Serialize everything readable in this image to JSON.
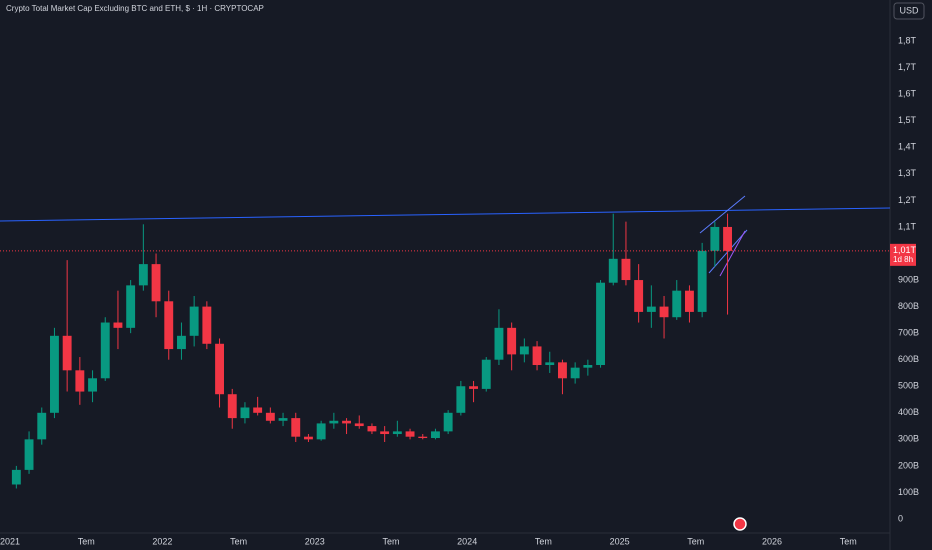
{
  "chart_data": {
    "type": "candlestick",
    "title": "Crypto Total Market Cap Excluding BTC and ETH, $ · 1H · CRYPTOCAP",
    "currency_button": "USD",
    "x": [
      "2021-01",
      "2021-02",
      "2021-03",
      "2021-04",
      "2021-05",
      "2021-06",
      "2021-07",
      "2021-08",
      "2021-09",
      "2021-10",
      "2021-11",
      "2021-12",
      "2022-01",
      "2022-02",
      "2022-03",
      "2022-04",
      "2022-05",
      "2022-06",
      "2022-07",
      "2022-08",
      "2022-09",
      "2022-10",
      "2022-11",
      "2022-12",
      "2023-01",
      "2023-02",
      "2023-03",
      "2023-04",
      "2023-05",
      "2023-06",
      "2023-07",
      "2023-08",
      "2023-09",
      "2023-10",
      "2023-11",
      "2023-12",
      "2024-01",
      "2024-02",
      "2024-03",
      "2024-04",
      "2024-05",
      "2024-06",
      "2024-07",
      "2024-08",
      "2024-09",
      "2024-10",
      "2024-11",
      "2024-12",
      "2025-01",
      "2025-02",
      "2025-03",
      "2025-04",
      "2025-05",
      "2025-06",
      "2025-07",
      "2025-08",
      "2025-09"
    ],
    "open": [
      130,
      185,
      300,
      400,
      690,
      560,
      480,
      530,
      740,
      720,
      880,
      960,
      820,
      640,
      690,
      800,
      660,
      470,
      380,
      420,
      400,
      370,
      380,
      310,
      300,
      360,
      370,
      360,
      350,
      330,
      320,
      330,
      310,
      305,
      330,
      400,
      500,
      490,
      600,
      720,
      620,
      650,
      580,
      590,
      530,
      570,
      580,
      890,
      980,
      900,
      780,
      800,
      760,
      860,
      780,
      1010,
      1100
    ],
    "high": [
      200,
      330,
      420,
      720,
      975,
      610,
      560,
      760,
      860,
      900,
      1110,
      1000,
      860,
      740,
      840,
      820,
      680,
      490,
      440,
      460,
      420,
      400,
      400,
      320,
      370,
      400,
      380,
      390,
      360,
      350,
      370,
      340,
      320,
      340,
      410,
      520,
      520,
      610,
      790,
      740,
      680,
      670,
      630,
      600,
      590,
      600,
      900,
      1150,
      1120,
      960,
      880,
      840,
      900,
      880,
      1040,
      1120,
      1150
    ],
    "low": [
      115,
      170,
      280,
      380,
      480,
      430,
      440,
      520,
      640,
      700,
      860,
      760,
      600,
      600,
      650,
      640,
      420,
      340,
      360,
      390,
      360,
      350,
      290,
      290,
      295,
      340,
      320,
      340,
      320,
      290,
      310,
      300,
      300,
      300,
      320,
      390,
      440,
      480,
      580,
      560,
      590,
      560,
      550,
      470,
      510,
      540,
      570,
      880,
      880,
      740,
      720,
      680,
      750,
      740,
      760,
      950,
      770
    ],
    "close": [
      185,
      300,
      400,
      690,
      560,
      480,
      530,
      740,
      720,
      880,
      960,
      820,
      640,
      690,
      800,
      660,
      470,
      380,
      420,
      400,
      370,
      380,
      310,
      300,
      360,
      370,
      360,
      350,
      330,
      320,
      330,
      310,
      305,
      330,
      400,
      500,
      490,
      600,
      720,
      620,
      650,
      580,
      590,
      530,
      570,
      580,
      890,
      980,
      900,
      780,
      800,
      760,
      860,
      780,
      1010,
      1100,
      1010
    ],
    "up_color": "#089981",
    "down_color": "#f23645",
    "ylim": [
      0,
      1900
    ],
    "yticks": [
      0,
      {
        "value": 100,
        "label": "100B"
      },
      {
        "value": 200,
        "label": "200B"
      },
      {
        "value": 300,
        "label": "300B"
      },
      {
        "value": 400,
        "label": "400B"
      },
      {
        "value": 500,
        "label": "500B"
      },
      {
        "value": 600,
        "label": "600B"
      },
      {
        "value": 700,
        "label": "700B"
      },
      {
        "value": 800,
        "label": "800B"
      },
      {
        "value": 900,
        "label": "900B"
      },
      {
        "value": 1100,
        "label": "1,1T"
      },
      {
        "value": 1200,
        "label": "1,2T"
      },
      {
        "value": 1300,
        "label": "1,3T"
      },
      {
        "value": 1400,
        "label": "1,4T"
      },
      {
        "value": 1500,
        "label": "1,5T"
      },
      {
        "value": 1600,
        "label": "1,6T"
      },
      {
        "value": 1700,
        "label": "1,7T"
      },
      {
        "value": 1800,
        "label": "1,8T"
      }
    ],
    "xticks": [
      {
        "value": "2021-01",
        "label": "2021"
      },
      {
        "value": "2021-07",
        "label": "Tem"
      },
      {
        "value": "2022-01",
        "label": "2022"
      },
      {
        "value": "2022-07",
        "label": "Tem"
      },
      {
        "value": "2023-01",
        "label": "2023"
      },
      {
        "value": "2023-07",
        "label": "Tem"
      },
      {
        "value": "2024-01",
        "label": "2024"
      },
      {
        "value": "2024-07",
        "label": "Tem"
      },
      {
        "value": "2025-01",
        "label": "2025"
      },
      {
        "value": "2025-07",
        "label": "Tem"
      },
      {
        "value": "2026-01",
        "label": "2026"
      },
      {
        "value": "2026-07",
        "label": "Tem"
      }
    ],
    "grid": false,
    "price_label": {
      "value": 1010,
      "label": "1,01T",
      "countdown": "1d 8h",
      "color": "#f23645"
    }
  }
}
